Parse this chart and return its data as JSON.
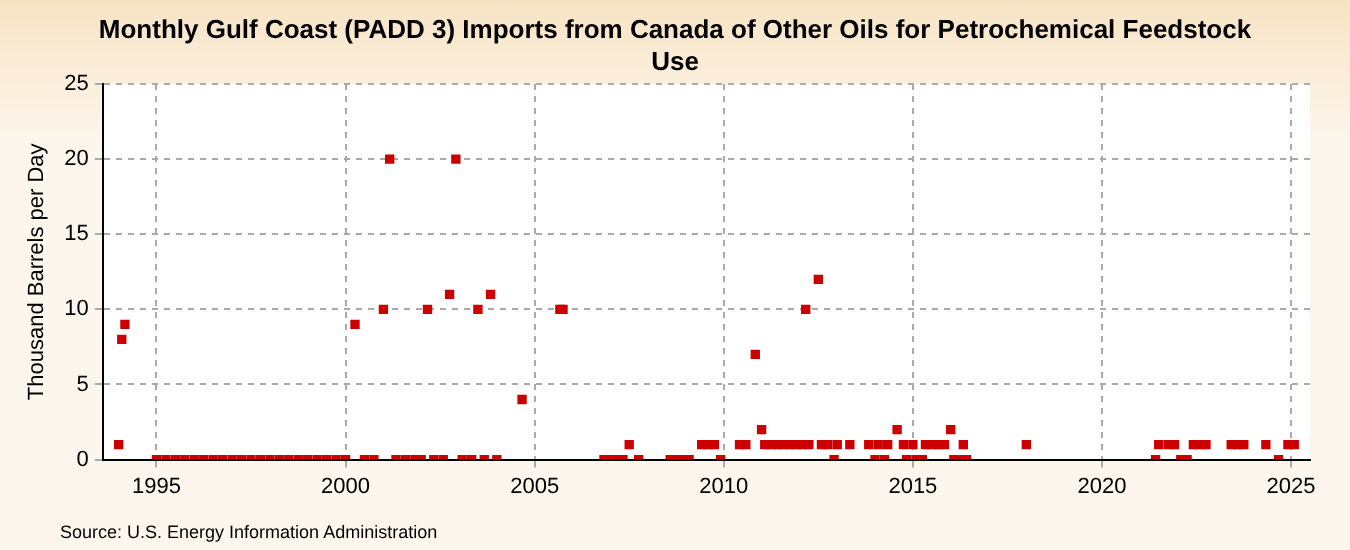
{
  "chart_data": {
    "type": "scatter",
    "title": "Monthly Gulf Coast (PADD 3) Imports from Canada of Other Oils for Petrochemical Feedstock Use",
    "ylabel": "Thousand Barrels per Day",
    "annotations": [
      "Source: U.S. Energy Information Administration"
    ],
    "x": [
      "1994-01",
      "1994-02",
      "1994-03",
      "1995-01",
      "1995-04",
      "1995-07",
      "1995-10",
      "1996-01",
      "1996-04",
      "1996-07",
      "1996-10",
      "1997-01",
      "1997-04",
      "1997-07",
      "1997-10",
      "1998-01",
      "1998-04",
      "1998-07",
      "1998-10",
      "1999-01",
      "1999-04",
      "1999-07",
      "1999-10",
      "2000-01",
      "2000-04",
      "2000-07",
      "2000-10",
      "2001-01",
      "2001-03",
      "2001-05",
      "2001-08",
      "2001-11",
      "2002-01",
      "2002-03",
      "2002-05",
      "2002-08",
      "2002-10",
      "2002-12",
      "2003-02",
      "2003-05",
      "2003-07",
      "2003-09",
      "2003-11",
      "2004-01",
      "2004-09",
      "2005-09",
      "2005-10",
      "2006-11",
      "2007-01",
      "2007-03",
      "2007-05",
      "2007-07",
      "2007-10",
      "2008-08",
      "2008-10",
      "2008-12",
      "2009-02",
      "2009-06",
      "2009-08",
      "2009-10",
      "2009-12",
      "2010-06",
      "2010-08",
      "2010-11",
      "2011-01",
      "2011-02",
      "2011-04",
      "2011-06",
      "2011-08",
      "2011-10",
      "2011-12",
      "2012-02",
      "2012-03",
      "2012-04",
      "2012-07",
      "2012-08",
      "2012-10",
      "2012-12",
      "2013-01",
      "2013-05",
      "2013-11",
      "2014-01",
      "2014-02",
      "2014-04",
      "2014-05",
      "2014-08",
      "2014-10",
      "2014-11",
      "2015-01",
      "2015-02",
      "2015-04",
      "2015-05",
      "2015-07",
      "2015-09",
      "2015-11",
      "2016-01",
      "2016-02",
      "2016-04",
      "2016-05",
      "2016-06",
      "2018-01",
      "2021-06",
      "2021-07",
      "2021-10",
      "2021-12",
      "2022-02",
      "2022-04",
      "2022-06",
      "2022-08",
      "2022-10",
      "2023-06",
      "2023-08",
      "2023-10",
      "2024-05",
      "2024-09",
      "2024-12",
      "2025-02"
    ],
    "series": [
      {
        "color": "#cc0000",
        "values": [
          1,
          8,
          9,
          0,
          0,
          0,
          0,
          0,
          0,
          0,
          0,
          0,
          0,
          0,
          0,
          0,
          0,
          0,
          0,
          0,
          0,
          0,
          0,
          0,
          9,
          0,
          0,
          10,
          20,
          0,
          0,
          0,
          0,
          10,
          0,
          0,
          11,
          20,
          0,
          0,
          10,
          0,
          11,
          0,
          4,
          10,
          10,
          0,
          0,
          0,
          0,
          1,
          0,
          0,
          0,
          0,
          0,
          1,
          1,
          1,
          0,
          1,
          1,
          7,
          2,
          1,
          1,
          1,
          1,
          1,
          1,
          1,
          10,
          1,
          12,
          1,
          1,
          0,
          1,
          1,
          1,
          0,
          1,
          0,
          1,
          2,
          1,
          0,
          1,
          0,
          0,
          1,
          1,
          1,
          1,
          2,
          0,
          0,
          1,
          0,
          1,
          0,
          1,
          1,
          1,
          0,
          0,
          1,
          1,
          1,
          1,
          1,
          1,
          1,
          0,
          1,
          1
        ]
      }
    ],
    "xlim": [
      "1993-08",
      "2025-07"
    ],
    "xticks": [
      "1995",
      "2000",
      "2005",
      "2010",
      "2015",
      "2020",
      "2025"
    ],
    "ylim": [
      0,
      25
    ],
    "yticks": [
      0,
      5,
      10,
      15,
      20,
      25
    ],
    "grid": true,
    "marker": "square",
    "legend": false
  }
}
